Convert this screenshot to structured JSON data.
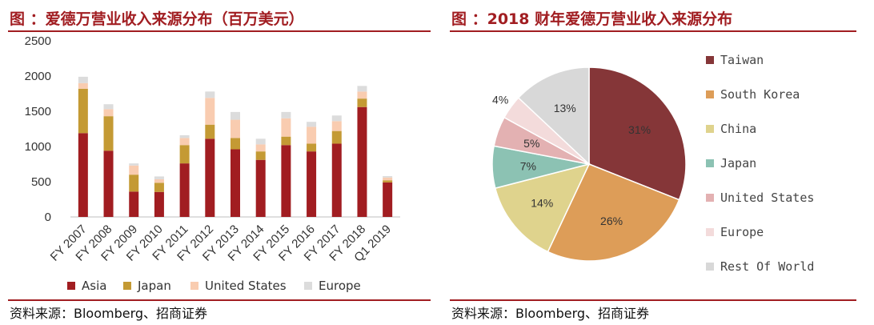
{
  "left_panel": {
    "title": "图 ：爱德万营业收入来源分布（百万美元）",
    "source": "资料来源：Bloomberg、招商证券"
  },
  "right_panel": {
    "title": "图 ：2018 财年爱德万营业收入来源分布",
    "source": "资料来源：Bloomberg、招商证券"
  },
  "chart_data": [
    {
      "type": "bar",
      "stacked": true,
      "categories": [
        "FY 2007",
        "FY 2008",
        "FY 2009",
        "FY 2010",
        "FY 2011",
        "FY 2012",
        "FY 2013",
        "FY 2014",
        "FY 2015",
        "FY 2016",
        "FY 2017",
        "FY 2018",
        "Q1 2019"
      ],
      "series": [
        {
          "name": "Asia",
          "color": "#a11d21",
          "values": [
            1190,
            940,
            360,
            355,
            760,
            1110,
            960,
            810,
            1020,
            930,
            1040,
            1560,
            490
          ]
        },
        {
          "name": "Japan",
          "color": "#c49a34",
          "values": [
            630,
            490,
            240,
            130,
            260,
            200,
            160,
            120,
            120,
            110,
            180,
            120,
            30
          ]
        },
        {
          "name": "United States",
          "color": "#f9ccb0",
          "values": [
            80,
            100,
            130,
            50,
            100,
            380,
            260,
            100,
            260,
            240,
            140,
            100,
            40
          ]
        },
        {
          "name": "Europe",
          "color": "#dcdcdc",
          "values": [
            90,
            70,
            30,
            40,
            40,
            90,
            110,
            80,
            90,
            70,
            80,
            80,
            20
          ]
        }
      ],
      "ylim": [
        0,
        2500
      ],
      "yticks": [
        0,
        500,
        1000,
        1500,
        2000,
        2500
      ],
      "grid": false,
      "legend_position": "bottom"
    },
    {
      "type": "pie",
      "labels": [
        "Taiwan",
        "South Korea",
        "China",
        "Japan",
        "United States",
        "Europe",
        "Rest Of World"
      ],
      "values": [
        31,
        26,
        14,
        7,
        5,
        4,
        13
      ],
      "value_labels": [
        "31%",
        "26%",
        "14%",
        "7%",
        "5%",
        "4%",
        "13%"
      ],
      "colors": [
        "#853638",
        "#dd9d58",
        "#dfd38d",
        "#8cc2b3",
        "#e3b1b2",
        "#f3dbdb",
        "#d8d8d8"
      ],
      "legend_position": "right"
    }
  ]
}
